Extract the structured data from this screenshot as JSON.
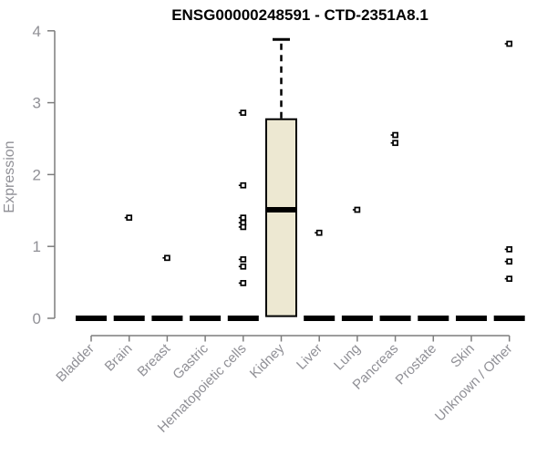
{
  "title": "ENSG00000248591 - CTD-2351A8.1",
  "chart_data": {
    "type": "boxplot",
    "title": "ENSG00000248591 - CTD-2351A8.1",
    "ylabel": "Expression",
    "xlabel": "",
    "ylim": [
      0,
      4
    ],
    "yticks": [
      0,
      1,
      2,
      3,
      4
    ],
    "legend": "none",
    "grid": false,
    "categories": [
      "Bladder",
      "Brain",
      "Breast",
      "Gastric",
      "Hematopoietic cells",
      "Kidney",
      "Liver",
      "Lung",
      "Pancreas",
      "Prostate",
      "Skin",
      "Unknown / Other"
    ],
    "boxes": [
      {
        "category": "Bladder",
        "median": 0,
        "q1": 0,
        "q3": 0,
        "whisker_low": 0,
        "whisker_high": 0,
        "outliers": []
      },
      {
        "category": "Brain",
        "median": 0,
        "q1": 0,
        "q3": 0,
        "whisker_low": 0,
        "whisker_high": 0,
        "outliers": [
          1.4
        ]
      },
      {
        "category": "Breast",
        "median": 0,
        "q1": 0,
        "q3": 0,
        "whisker_low": 0,
        "whisker_high": 0,
        "outliers": [
          0.84
        ]
      },
      {
        "category": "Gastric",
        "median": 0,
        "q1": 0,
        "q3": 0,
        "whisker_low": 0,
        "whisker_high": 0,
        "outliers": []
      },
      {
        "category": "Hematopoietic cells",
        "median": 0,
        "q1": 0,
        "q3": 0,
        "whisker_low": 0,
        "whisker_high": 0,
        "outliers": [
          2.86,
          1.85,
          1.4,
          1.33,
          1.27,
          0.82,
          0.72,
          0.49
        ]
      },
      {
        "category": "Kidney",
        "median": 1.51,
        "q1": 0.03,
        "q3": 2.77,
        "whisker_low": 0,
        "whisker_high": 3.88,
        "outliers": []
      },
      {
        "category": "Liver",
        "median": 0,
        "q1": 0,
        "q3": 0,
        "whisker_low": 0,
        "whisker_high": 0,
        "outliers": [
          1.19
        ]
      },
      {
        "category": "Lung",
        "median": 0,
        "q1": 0,
        "q3": 0,
        "whisker_low": 0,
        "whisker_high": 0,
        "outliers": [
          1.51
        ]
      },
      {
        "category": "Pancreas",
        "median": 0,
        "q1": 0,
        "q3": 0,
        "whisker_low": 0,
        "whisker_high": 0,
        "outliers": [
          2.55,
          2.44
        ]
      },
      {
        "category": "Prostate",
        "median": 0,
        "q1": 0,
        "q3": 0,
        "whisker_low": 0,
        "whisker_high": 0,
        "outliers": []
      },
      {
        "category": "Skin",
        "median": 0,
        "q1": 0,
        "q3": 0,
        "whisker_low": 0,
        "whisker_high": 0,
        "outliers": []
      },
      {
        "category": "Unknown / Other",
        "median": 0,
        "q1": 0,
        "q3": 0,
        "whisker_low": 0,
        "whisker_high": 0,
        "outliers": [
          3.82,
          0.96,
          0.79,
          0.55
        ]
      }
    ],
    "colors": {
      "box_fill": "#EDE8D2",
      "box_border": "#000000",
      "median": "#000000",
      "whisker": "#000000",
      "outlier_stroke": "#000000",
      "outlier_fill": "#FFFFFF",
      "axis_line": "#7D7D7D",
      "tick_label": "#909096",
      "title": "#000000"
    }
  }
}
